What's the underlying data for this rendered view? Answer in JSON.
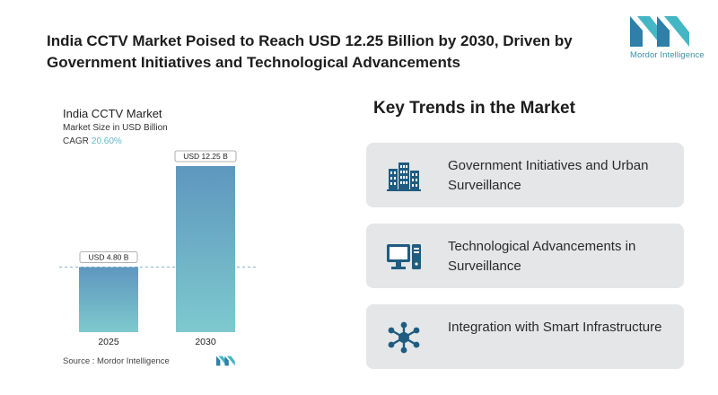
{
  "headline": "India CCTV Market Poised to Reach USD 12.25 Billion by 2030, Driven by Government Initiatives and Technological Advancements",
  "logo": {
    "name": "Mordor Intelligence"
  },
  "chart": {
    "title": "India CCTV Market",
    "subtitle": "Market Size in USD Billion",
    "cagr_label": "CAGR",
    "cagr_value": "20.60%",
    "source": "Source : Mordor Intelligence"
  },
  "chart_data": {
    "type": "bar",
    "categories": [
      "2025",
      "2030"
    ],
    "values": [
      4.8,
      12.25
    ],
    "data_labels": [
      "USD 4.80 B",
      "USD 12.25 B"
    ],
    "title": "India CCTV Market",
    "ylabel": "Market Size in USD Billion",
    "ylim": [
      0,
      12.25
    ],
    "grid": false,
    "colors": {
      "bar_top": "#5e97bf",
      "bar_bottom": "#7ec9ce",
      "reference_line": "#8ab2c7"
    }
  },
  "trends": {
    "title": "Key Trends in the Market",
    "items": [
      {
        "label": "Government Initiatives and Urban Surveillance",
        "icon": "city-buildings-icon"
      },
      {
        "label": "Technological Advancements in Surveillance",
        "icon": "computer-icon"
      },
      {
        "label": "Integration with Smart Infrastructure",
        "icon": "network-icon"
      }
    ]
  },
  "colors": {
    "icon": "#1f5c80",
    "card": "#e4e6e8",
    "accent": "#5fb9c5"
  }
}
